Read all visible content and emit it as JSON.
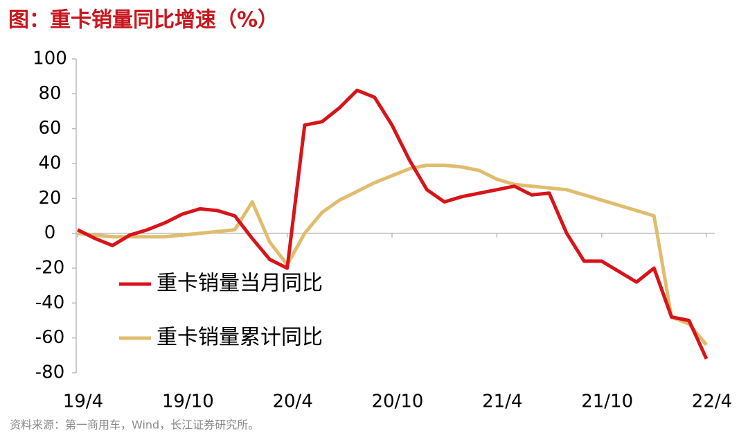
{
  "chart_data": {
    "type": "line",
    "title": "图：重卡销量同比增速（%）",
    "source": "资料来源：第一商用车，Wind，长江证券研究所。",
    "categories": [
      "19/4",
      null,
      null,
      null,
      null,
      null,
      "19/10",
      null,
      null,
      null,
      null,
      null,
      "20/4",
      null,
      null,
      null,
      null,
      null,
      "20/10",
      null,
      null,
      null,
      null,
      null,
      "21/4",
      null,
      null,
      null,
      null,
      null,
      "21/10",
      null,
      null,
      null,
      null,
      null,
      "22/4"
    ],
    "series": [
      {
        "name": "重卡销量当月同比",
        "color": "#d7141a",
        "values": [
          2,
          -3,
          -7,
          -1,
          2,
          6,
          11,
          14,
          13,
          10,
          -3,
          -15,
          -20,
          62,
          64,
          72,
          82,
          78,
          62,
          42,
          25,
          18,
          21,
          23,
          25,
          27,
          22,
          23,
          0,
          -16,
          -16,
          -22,
          -28,
          -20,
          -48,
          -50,
          -72
        ]
      },
      {
        "name": "重卡销量累计同比",
        "color": "#e0bd6e",
        "values": [
          0,
          -1,
          -2,
          -2,
          -2,
          -2,
          -1,
          0,
          1,
          2,
          18,
          -5,
          -18,
          0,
          12,
          19,
          24,
          29,
          33,
          37,
          39,
          39,
          38,
          36,
          31,
          28,
          27,
          26,
          25,
          22,
          19,
          16,
          13,
          10,
          -48,
          -52,
          -64
        ]
      }
    ],
    "ylim": [
      -80,
      100
    ],
    "yticks": [
      -80,
      -60,
      -40,
      -20,
      0,
      20,
      40,
      60,
      80,
      100
    ],
    "legend": "left"
  }
}
